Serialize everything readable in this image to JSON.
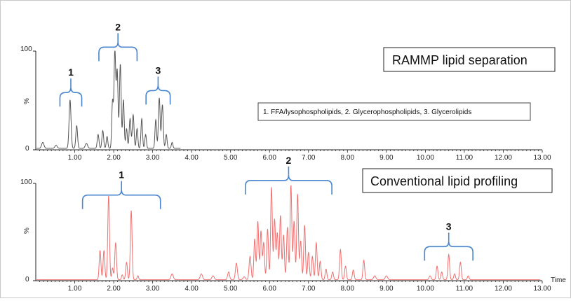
{
  "chart_data": [
    {
      "type": "line",
      "title": "RAMMP lipid separation",
      "annotation": "1. FFA/lysophospholipids, 2. Glycerophospholipids, 3. Glycerolipids",
      "ylabel": "%",
      "xlabel": "",
      "xlim": [
        0,
        13
      ],
      "ylim": [
        0,
        100
      ],
      "y_ticks": [
        "0",
        "100"
      ],
      "x_ticks": [
        "1.00",
        "2.00",
        "3.00",
        "4.00",
        "5.00",
        "6.00",
        "7.00",
        "8.00",
        "9.00",
        "10.00",
        "11.00",
        "12.00",
        "13.00"
      ],
      "line_color": "#555555",
      "bracket_color": "#4a86d0",
      "series": [
        {
          "baseline": 1.5,
          "x_end": 3.72,
          "peaks": [
            [
              0.18,
              6,
              0.03
            ],
            [
              0.52,
              3,
              0.03
            ],
            [
              0.88,
              49,
              0.025
            ],
            [
              1.05,
              23,
              0.022
            ],
            [
              1.3,
              5,
              0.03
            ],
            [
              1.6,
              14,
              0.022
            ],
            [
              1.72,
              18,
              0.022
            ],
            [
              1.83,
              12,
              0.02
            ],
            [
              1.97,
              47,
              0.02
            ],
            [
              2.03,
              98,
              0.022
            ],
            [
              2.09,
              78,
              0.022
            ],
            [
              2.17,
              85,
              0.022
            ],
            [
              2.25,
              49,
              0.02
            ],
            [
              2.33,
              20,
              0.02
            ],
            [
              2.42,
              30,
              0.022
            ],
            [
              2.5,
              34,
              0.022
            ],
            [
              2.6,
              20,
              0.02
            ],
            [
              2.72,
              30,
              0.02
            ],
            [
              2.82,
              14,
              0.02
            ],
            [
              3.08,
              29,
              0.02
            ],
            [
              3.17,
              51,
              0.022
            ],
            [
              3.25,
              44,
              0.022
            ],
            [
              3.35,
              14,
              0.02
            ],
            [
              3.5,
              6,
              0.02
            ]
          ]
        }
      ],
      "brackets": [
        {
          "label": "1",
          "x_start": 0.62,
          "x_end": 1.18,
          "level": 58
        },
        {
          "label": "2",
          "x_start": 1.62,
          "x_end": 2.6,
          "level": 104
        },
        {
          "label": "3",
          "x_start": 2.83,
          "x_end": 3.45,
          "level": 60
        }
      ]
    },
    {
      "type": "line",
      "title": "Conventional lipid profiling",
      "ylabel": "%",
      "xlabel": "Time",
      "xlim": [
        0,
        13
      ],
      "ylim": [
        0,
        100
      ],
      "y_ticks": [
        "0",
        "100"
      ],
      "x_ticks": [
        "1.00",
        "2.00",
        "3.00",
        "4.00",
        "5.00",
        "6.00",
        "7.00",
        "8.00",
        "9.00",
        "10.00",
        "11.00",
        "12.00",
        "13.00"
      ],
      "line_color": "#f07070",
      "bracket_color": "#4a86d0",
      "series": [
        {
          "baseline": 1,
          "x_end": 12.95,
          "peaks": [
            [
              1.65,
              30,
              0.022
            ],
            [
              1.75,
              30,
              0.022
            ],
            [
              1.87,
              86,
              0.022
            ],
            [
              1.97,
              12,
              0.02
            ],
            [
              2.05,
              38,
              0.022
            ],
            [
              2.22,
              5,
              0.02
            ],
            [
              2.33,
              18,
              0.022
            ],
            [
              2.45,
              71,
              0.022
            ],
            [
              2.62,
              4,
              0.02
            ],
            [
              3.5,
              6,
              0.03
            ],
            [
              4.25,
              6,
              0.03
            ],
            [
              4.55,
              4,
              0.03
            ],
            [
              4.95,
              8,
              0.025
            ],
            [
              5.15,
              17,
              0.025
            ],
            [
              5.35,
              3,
              0.03
            ],
            [
              5.5,
              24,
              0.025
            ],
            [
              5.62,
              42,
              0.022
            ],
            [
              5.7,
              60,
              0.022
            ],
            [
              5.78,
              50,
              0.022
            ],
            [
              5.85,
              38,
              0.022
            ],
            [
              5.95,
              52,
              0.022
            ],
            [
              6.05,
              95,
              0.022
            ],
            [
              6.13,
              62,
              0.022
            ],
            [
              6.2,
              48,
              0.022
            ],
            [
              6.28,
              66,
              0.022
            ],
            [
              6.36,
              46,
              0.022
            ],
            [
              6.46,
              54,
              0.022
            ],
            [
              6.55,
              97,
              0.022
            ],
            [
              6.63,
              60,
              0.022
            ],
            [
              6.72,
              88,
              0.022
            ],
            [
              6.8,
              40,
              0.022
            ],
            [
              6.9,
              56,
              0.022
            ],
            [
              7.0,
              28,
              0.022
            ],
            [
              7.1,
              24,
              0.022
            ],
            [
              7.2,
              38,
              0.022
            ],
            [
              7.3,
              19,
              0.022
            ],
            [
              7.45,
              11,
              0.022
            ],
            [
              7.62,
              8,
              0.022
            ],
            [
              7.82,
              31,
              0.022
            ],
            [
              7.95,
              14,
              0.022
            ],
            [
              8.15,
              10,
              0.022
            ],
            [
              8.42,
              20,
              0.022
            ],
            [
              8.7,
              4,
              0.03
            ],
            [
              9.0,
              4,
              0.03
            ],
            [
              10.12,
              4,
              0.025
            ],
            [
              10.3,
              14,
              0.022
            ],
            [
              10.42,
              8,
              0.022
            ],
            [
              10.6,
              26,
              0.022
            ],
            [
              10.75,
              6,
              0.022
            ],
            [
              10.9,
              18,
              0.022
            ],
            [
              11.1,
              4,
              0.022
            ]
          ]
        }
      ],
      "brackets": [
        {
          "label": "1",
          "x_start": 1.2,
          "x_end": 3.2,
          "level": 88
        },
        {
          "label": "2",
          "x_start": 5.38,
          "x_end": 7.6,
          "level": 103
        },
        {
          "label": "3",
          "x_start": 9.98,
          "x_end": 11.22,
          "level": 35
        }
      ]
    }
  ]
}
